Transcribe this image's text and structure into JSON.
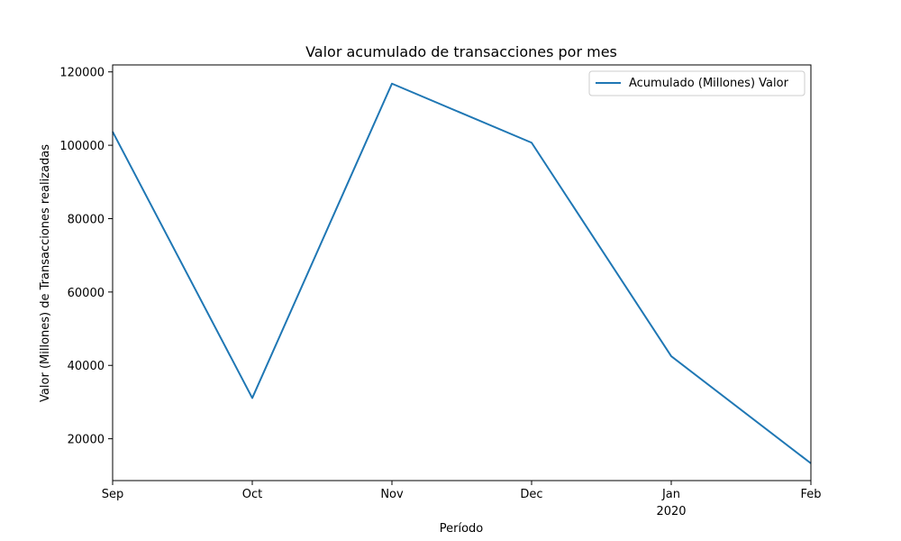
{
  "chart_data": {
    "type": "line",
    "title": "Valor acumulado de transacciones por mes",
    "xlabel": "Período",
    "ylabel": "Valor (Millones) de Transacciones realizadas",
    "x": [
      "2019-09",
      "2019-10",
      "2019-11",
      "2019-12",
      "2020-01",
      "2020-02"
    ],
    "x_tick_labels": [
      "Sep",
      "Oct",
      "Nov",
      "Dec",
      "Jan",
      "Feb"
    ],
    "x_tick_year_label": "2020",
    "series": [
      {
        "name": "Acumulado (Millones) Valor",
        "values": [
          103700,
          31100,
          116800,
          100700,
          42500,
          13300
        ],
        "color": "#1f77b4"
      }
    ],
    "ylim": [
      8600,
      121900
    ],
    "yticks": [
      20000,
      40000,
      60000,
      80000,
      100000,
      120000
    ],
    "grid": false,
    "legend_position": "top-right"
  }
}
